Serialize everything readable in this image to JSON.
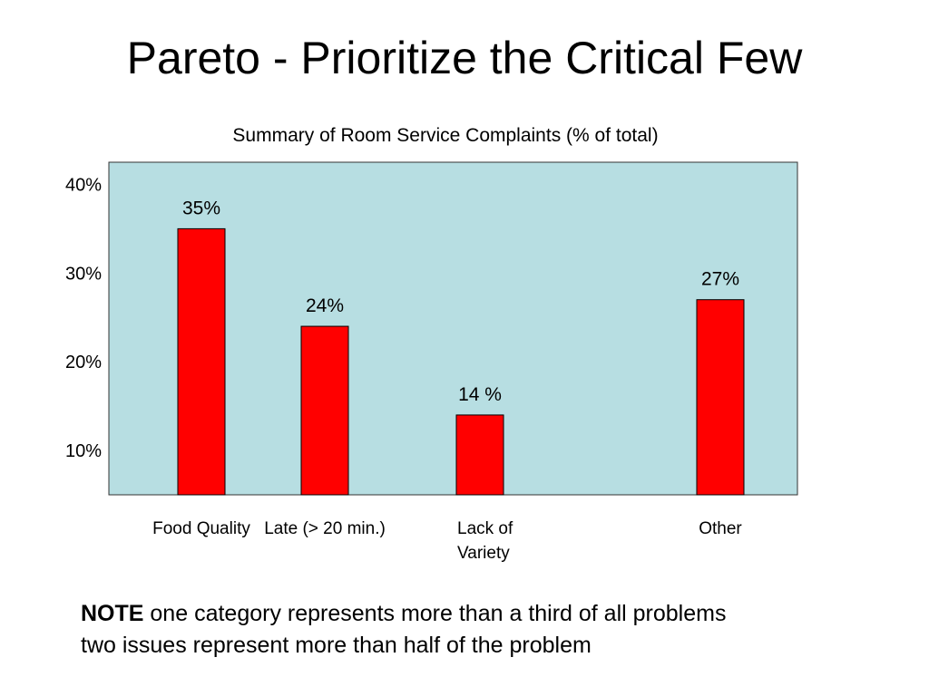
{
  "slide": {
    "title": "Pareto - Prioritize the Critical Few"
  },
  "chart_data": {
    "type": "bar",
    "title": "Summary of Room Service Complaints (% of total)",
    "categories": [
      [
        "Food Quality"
      ],
      [
        "Late (> 20 min.)"
      ],
      [
        "Lack of",
        "Variety"
      ],
      [
        "Other"
      ]
    ],
    "values": [
      35,
      24,
      14,
      27
    ],
    "data_labels": [
      "35%",
      "24%",
      "14 %",
      "27%"
    ],
    "y_ticks": [
      10,
      20,
      30,
      40
    ],
    "y_tick_labels": [
      "10%",
      "20%",
      "30%",
      "40%"
    ],
    "ylim": [
      5,
      42.5
    ],
    "grid": false,
    "legend": "none",
    "colors": {
      "plot_background": "#b7dee2",
      "bar": "#ff0000",
      "bar_outline": "#000000"
    }
  },
  "note": {
    "bold": "NOTE",
    "line1": "one category represents more than a third of all problems",
    "line2": "two issues represent more than half of the problem"
  }
}
